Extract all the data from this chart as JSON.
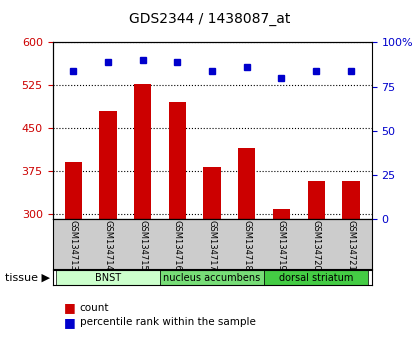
{
  "title": "GDS2344 / 1438087_at",
  "samples": [
    "GSM134713",
    "GSM134714",
    "GSM134715",
    "GSM134716",
    "GSM134717",
    "GSM134718",
    "GSM134719",
    "GSM134720",
    "GSM134721"
  ],
  "counts": [
    390,
    480,
    528,
    495,
    382,
    415,
    308,
    358,
    358
  ],
  "percentiles": [
    84,
    89,
    90,
    89,
    84,
    86,
    80,
    84,
    84
  ],
  "ylim_left": [
    290,
    600
  ],
  "ylim_right": [
    0,
    100
  ],
  "yticks_left": [
    300,
    375,
    450,
    525,
    600
  ],
  "yticks_right": [
    0,
    25,
    50,
    75,
    100
  ],
  "bar_color": "#cc0000",
  "dot_color": "#0000cc",
  "bar_bottom": 290,
  "groups": [
    {
      "label": "BNST",
      "start": 0,
      "end": 3,
      "color": "#ccffcc"
    },
    {
      "label": "nucleus accumbens",
      "start": 3,
      "end": 6,
      "color": "#77dd77"
    },
    {
      "label": "dorsal striatum",
      "start": 6,
      "end": 9,
      "color": "#44cc44"
    }
  ],
  "tissue_label": "tissue",
  "legend_count_label": "count",
  "legend_pct_label": "percentile rank within the sample",
  "grid_color": "black",
  "bg_color": "#ffffff",
  "label_area_color": "#cccccc",
  "tick_label_color_left": "#cc0000",
  "tick_label_color_right": "#0000cc",
  "right_tick_labels": [
    "0",
    "25",
    "50",
    "75",
    "100%"
  ]
}
